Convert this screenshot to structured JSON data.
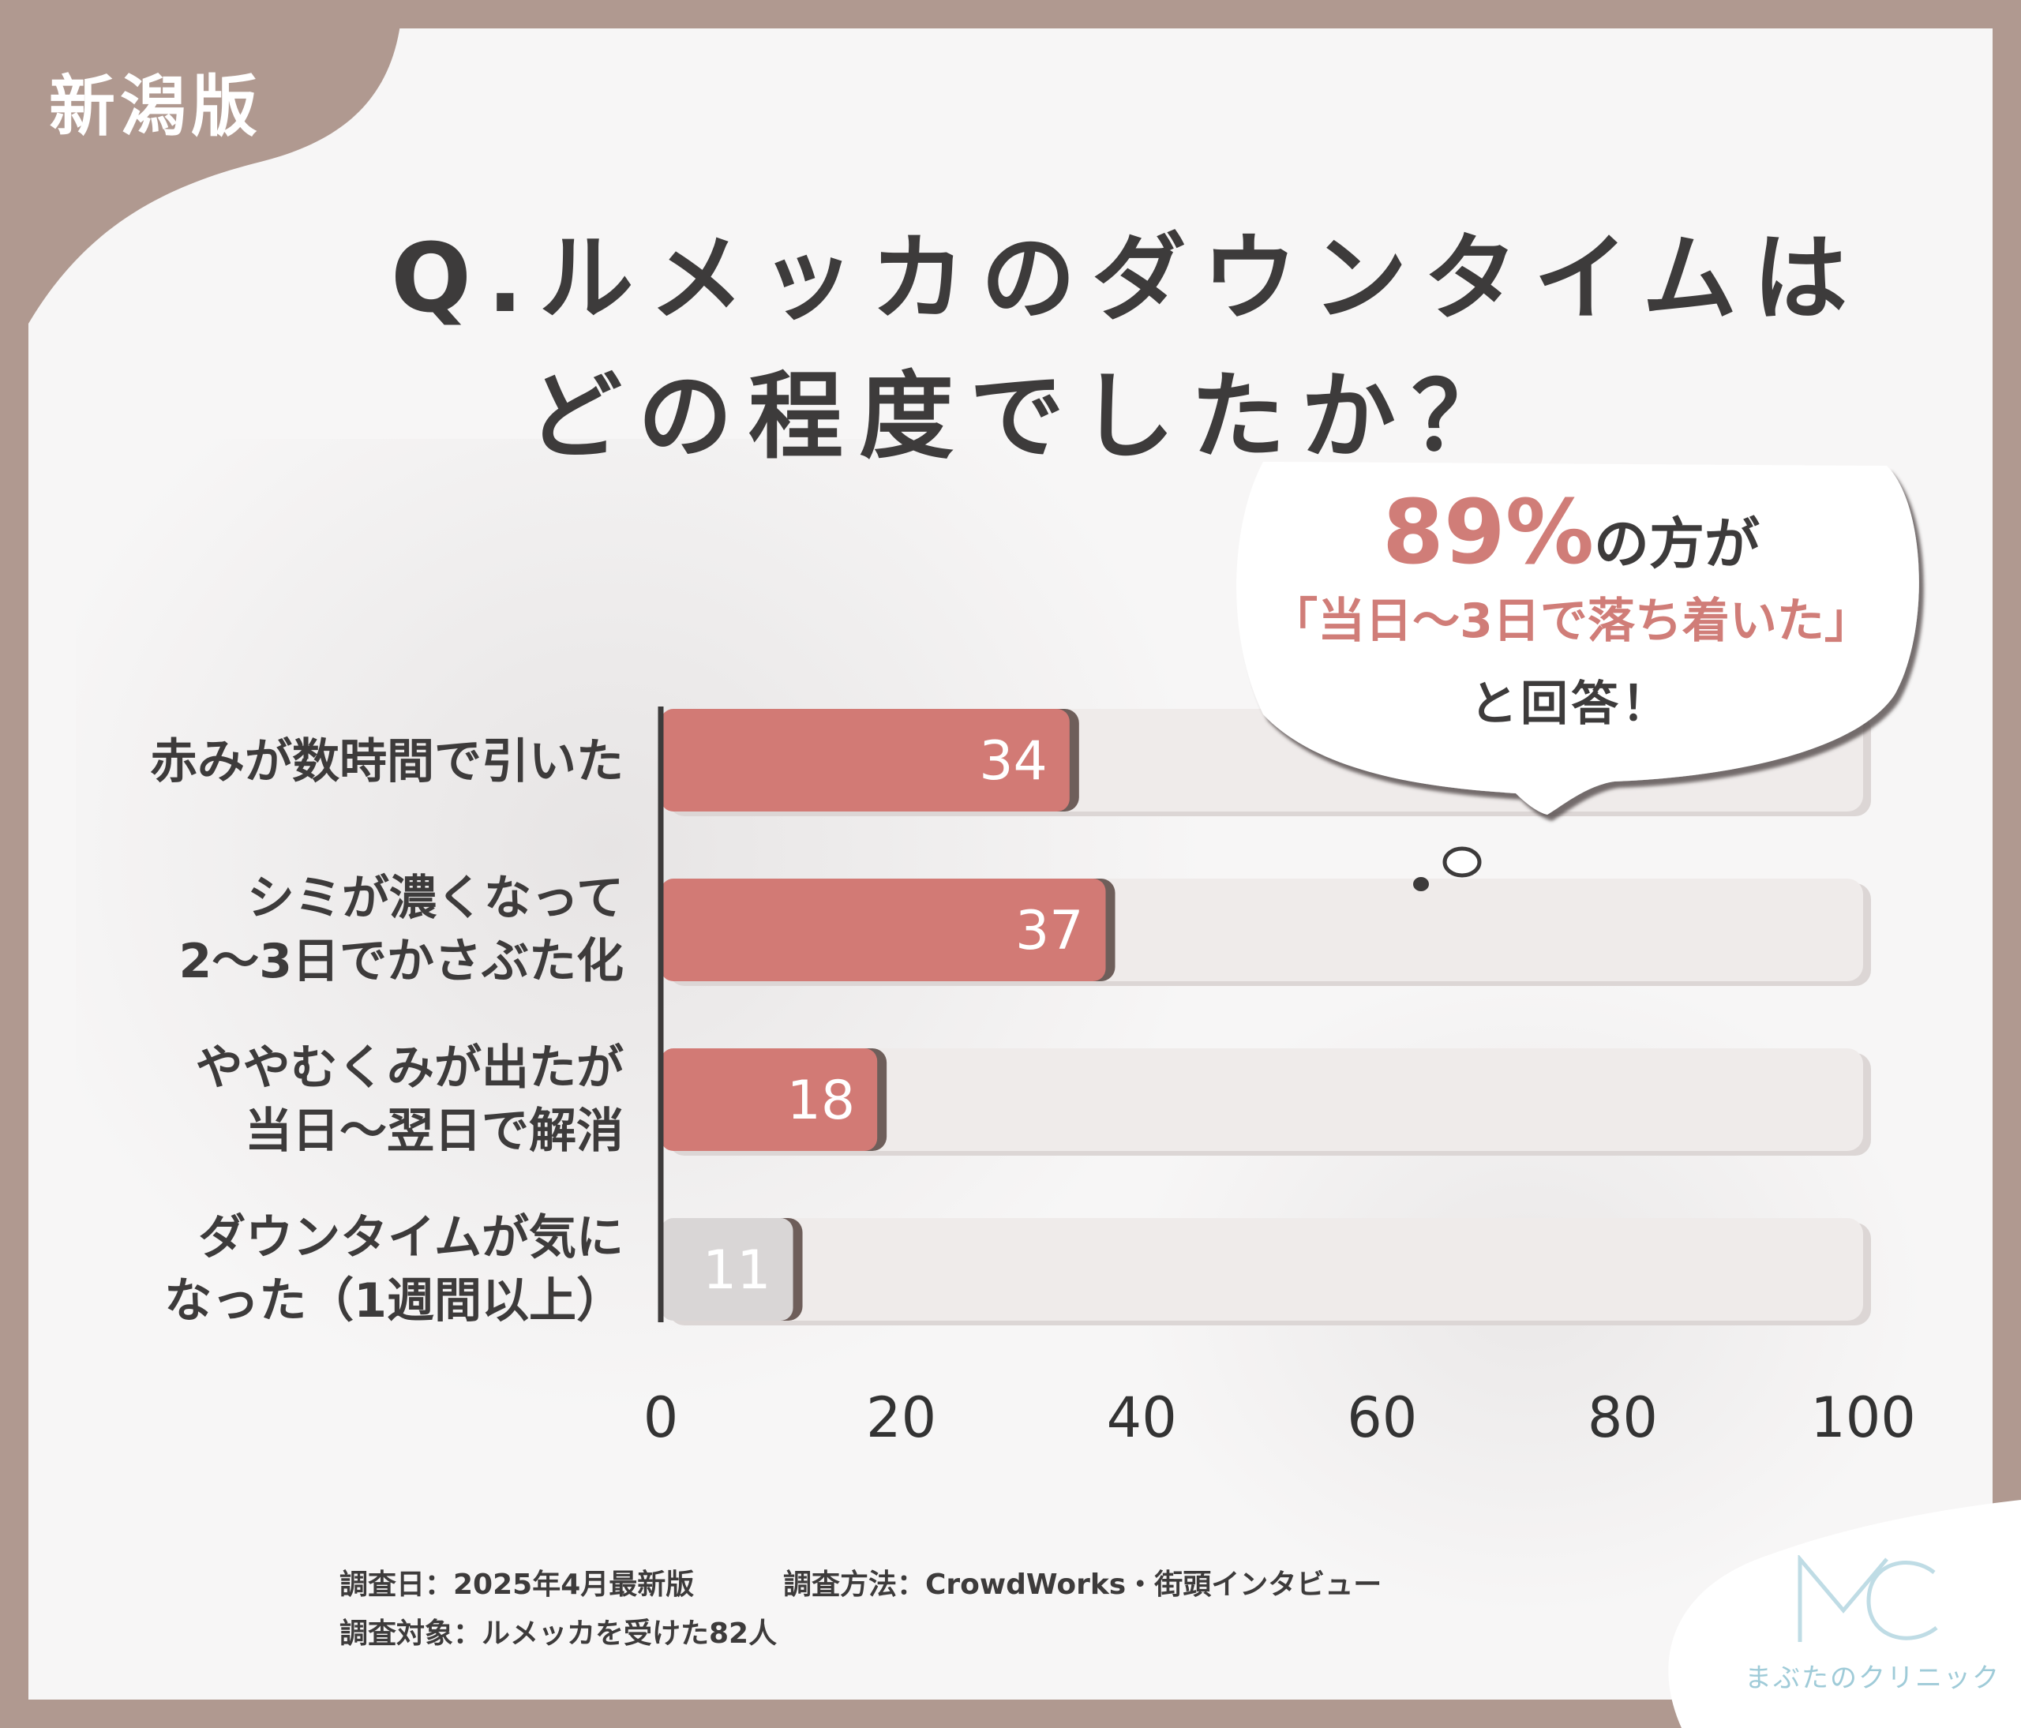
{
  "badge": {
    "region": "新潟版"
  },
  "title": {
    "line1": "Q.ルメッカのダウンタイムは",
    "line2": "どの程度でしたか？"
  },
  "callout": {
    "percent": "89%",
    "suffix": "の方が",
    "quote": "「当日〜3日で落ち着いた」",
    "answer": "と回答！"
  },
  "chart_data": {
    "type": "bar",
    "orientation": "horizontal",
    "categories": [
      [
        "赤みが数時間で引いた"
      ],
      [
        "シミが濃くなって",
        "2〜3日でかさぶた化"
      ],
      [
        "ややむくみが出たが",
        "当日〜翌日で解消"
      ],
      [
        "ダウンタイムが気に",
        "なった（1週間以上）"
      ]
    ],
    "values": [
      34,
      37,
      18,
      11
    ],
    "value_labels": [
      "34",
      "37",
      "18",
      "11"
    ],
    "xlim": [
      0,
      100
    ],
    "xticks": [
      "0",
      "20",
      "40",
      "60",
      "80",
      "100"
    ],
    "grid": false,
    "colors": {
      "highlight": "#d27a75",
      "muted": "#d9d6d6",
      "track": "#efebea"
    }
  },
  "notes": {
    "date": "調査日：2025年4月最新版",
    "method": "調査方法：CrowdWorks・街頭インタビュー",
    "target": "調査対象：ルメッカを受けた82人"
  },
  "logo": {
    "mark": "MC",
    "name": "まぶたのクリニック"
  },
  "colors": {
    "frame": "#b09990",
    "accent": "#d07d78",
    "text": "#3d3b3b",
    "logo": "#9fcbd8"
  }
}
